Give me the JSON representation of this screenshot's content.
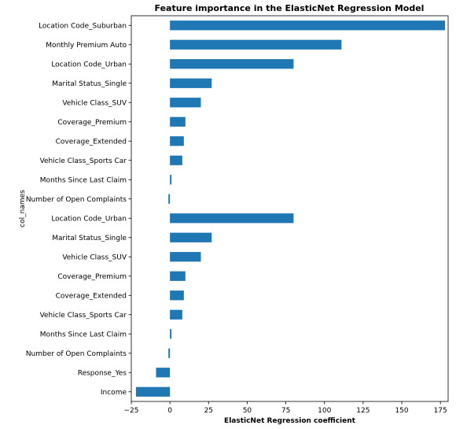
{
  "chart_data": {
    "type": "bar",
    "orientation": "horizontal",
    "title": "Feature importance in the ElasticNet Regression Model",
    "xlabel": "ElasticNet Regression coefficient",
    "ylabel": "col_names",
    "xlim": [
      -25,
      180
    ],
    "xticks": [
      -25,
      0,
      25,
      50,
      75,
      100,
      125,
      150,
      175
    ],
    "xtick_labels": [
      "−25",
      "0",
      "25",
      "50",
      "75",
      "100",
      "125",
      "150",
      "175"
    ],
    "grid": false,
    "legend": "none",
    "bar_color": "#1f77b4",
    "categories": [
      "Location Code_Suburban",
      "Monthly Premium Auto",
      "Location Code_Urban",
      "Marital Status_Single",
      "Vehicle Class_SUV",
      "Coverage_Premium",
      "Coverage_Extended",
      "Vehicle Class_Sports Car",
      "Months Since Last Claim",
      "Number of Open Complaints",
      "Location Code_Urban",
      "Marital Status_Single",
      "Vehicle Class_SUV",
      "Coverage_Premium",
      "Coverage_Extended",
      "Vehicle Class_Sports Car",
      "Months Since Last Claim",
      "Number of Open Complaints",
      "Response_Yes",
      "Income"
    ],
    "values": [
      178,
      111,
      80,
      27,
      20,
      10,
      9,
      8,
      1,
      -1,
      80,
      27,
      20,
      10,
      9,
      8,
      1,
      -1,
      -9,
      -22
    ]
  }
}
